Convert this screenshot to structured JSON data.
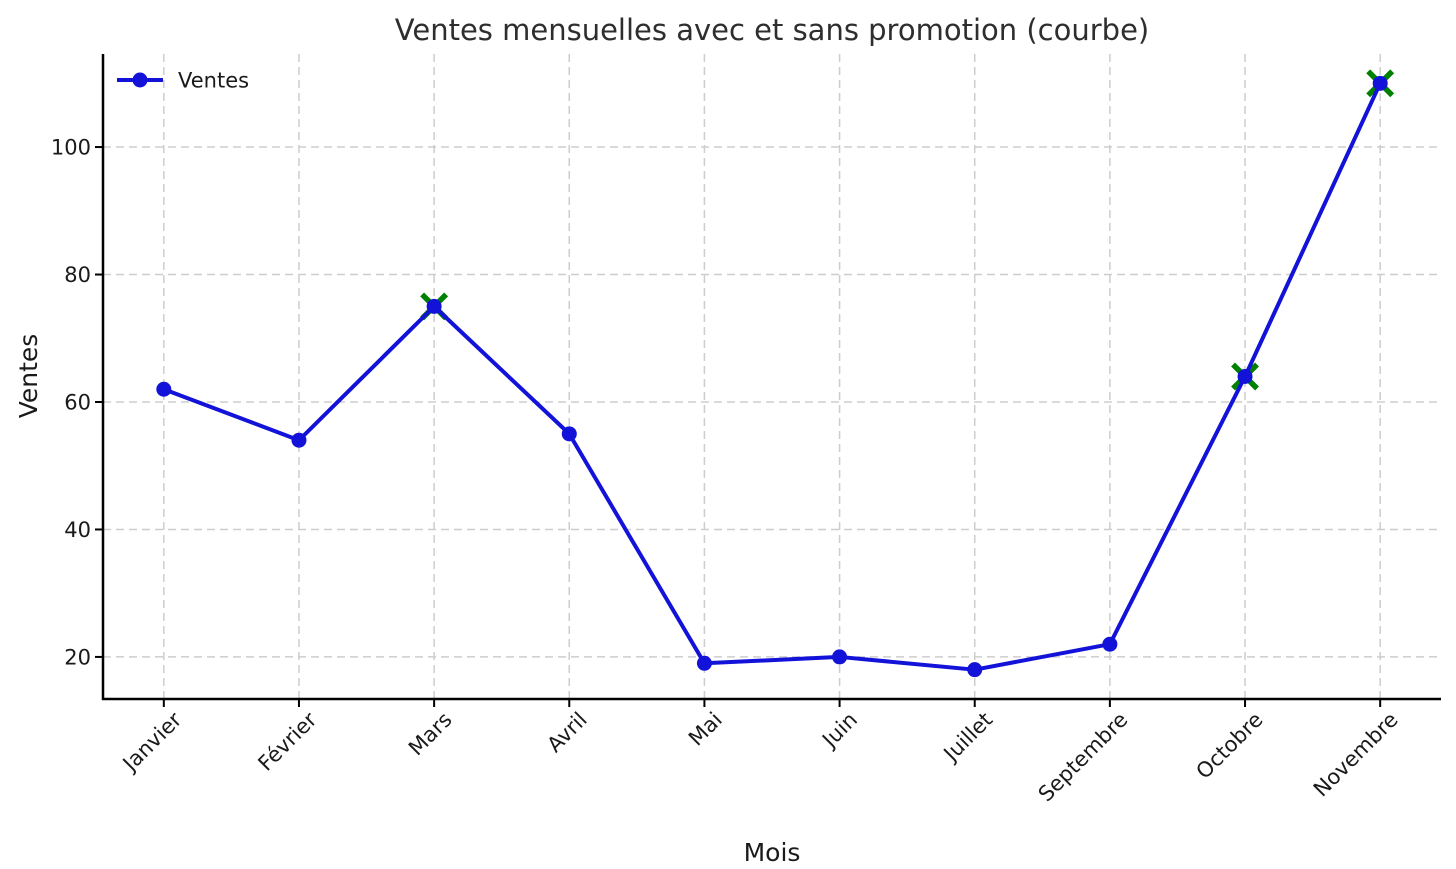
{
  "chart_data": {
    "type": "line",
    "title": "Ventes mensuelles avec et sans promotion (courbe)",
    "xlabel": "Mois",
    "ylabel": "Ventes",
    "categories": [
      "Janvier",
      "Février",
      "Mars",
      "Avril",
      "Mai",
      "Juin",
      "Juillet",
      "Septembre",
      "Octobre",
      "Novembre"
    ],
    "series": [
      {
        "name": "Ventes",
        "color": "#1212d9",
        "marker": "circle",
        "values": [
          62,
          54,
          75,
          55,
          19,
          20,
          18,
          22,
          64,
          110
        ]
      }
    ],
    "promotion_markers": {
      "marker": "x",
      "color": "#008000",
      "points": [
        {
          "category": "Mars",
          "value": 75
        },
        {
          "category": "Octobre",
          "value": 64
        },
        {
          "category": "Novembre",
          "value": 110
        }
      ]
    },
    "legend": {
      "position": "upper-left",
      "frame": false,
      "entries": [
        {
          "label": "Ventes",
          "marker": "circle",
          "color": "#1212d9"
        }
      ]
    },
    "yticks": [
      20,
      40,
      60,
      80,
      100
    ],
    "ylim": [
      13.4,
      114.6
    ],
    "xlim": [
      -0.45,
      9.45
    ],
    "x_tick_rotation_deg": 45,
    "grid": {
      "show": true,
      "style": "dashed",
      "color": "#cdcdcd"
    },
    "background": "#ffffff",
    "axis_color": "#000000",
    "text_color": "#1a1a1a",
    "title_color": "#2e2e2e"
  }
}
